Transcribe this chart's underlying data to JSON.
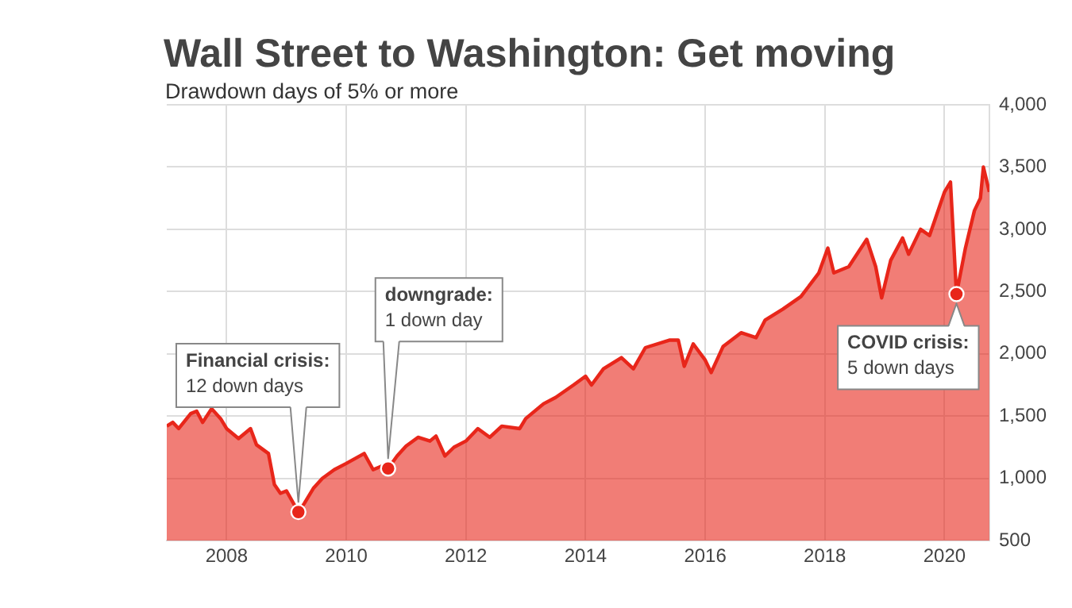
{
  "chart_data": {
    "type": "area",
    "title": "Wall Street to Washington: Get moving",
    "subtitle": "Drawdown days of 5% or more",
    "x": [
      2007.0,
      2007.1,
      2007.2,
      2007.4,
      2007.5,
      2007.6,
      2007.75,
      2007.9,
      2008.0,
      2008.2,
      2008.4,
      2008.5,
      2008.7,
      2008.8,
      2008.9,
      2009.0,
      2009.2,
      2009.3,
      2009.45,
      2009.6,
      2009.8,
      2010.0,
      2010.3,
      2010.45,
      2010.6,
      2010.7,
      2010.85,
      2011.0,
      2011.2,
      2011.4,
      2011.5,
      2011.65,
      2011.8,
      2012.0,
      2012.2,
      2012.4,
      2012.6,
      2012.9,
      2013.0,
      2013.3,
      2013.5,
      2013.8,
      2014.0,
      2014.1,
      2014.3,
      2014.6,
      2014.8,
      2015.0,
      2015.4,
      2015.55,
      2015.65,
      2015.8,
      2016.0,
      2016.1,
      2016.3,
      2016.6,
      2016.85,
      2017.0,
      2017.3,
      2017.6,
      2017.9,
      2018.05,
      2018.15,
      2018.4,
      2018.7,
      2018.85,
      2018.95,
      2019.1,
      2019.3,
      2019.4,
      2019.6,
      2019.75,
      2020.0,
      2020.1,
      2020.2,
      2020.35,
      2020.5,
      2020.6,
      2020.65,
      2020.75
    ],
    "series": [
      {
        "color": "#e8261a",
        "values": [
          1420,
          1450,
          1400,
          1520,
          1540,
          1450,
          1560,
          1480,
          1400,
          1320,
          1400,
          1270,
          1200,
          950,
          880,
          900,
          730,
          800,
          920,
          1000,
          1070,
          1120,
          1200,
          1070,
          1100,
          1080,
          1180,
          1260,
          1330,
          1300,
          1340,
          1180,
          1250,
          1300,
          1400,
          1330,
          1420,
          1400,
          1480,
          1600,
          1650,
          1750,
          1820,
          1750,
          1880,
          1970,
          1880,
          2050,
          2110,
          2110,
          1900,
          2080,
          1950,
          1850,
          2060,
          2170,
          2130,
          2270,
          2360,
          2460,
          2650,
          2850,
          2650,
          2700,
          2920,
          2700,
          2450,
          2750,
          2930,
          2800,
          3000,
          2950,
          3300,
          3380,
          2480,
          2850,
          3150,
          3250,
          3500,
          3300
        ]
      }
    ],
    "xlim": [
      2007.0,
      2020.75
    ],
    "xticks": [
      2008,
      2010,
      2012,
      2014,
      2016,
      2018,
      2020
    ],
    "ylim": [
      500,
      4000
    ],
    "yticks": [
      {
        "value": 500,
        "label": "500"
      },
      {
        "value": 1000,
        "label": "1,000"
      },
      {
        "value": 1500,
        "label": "1,500"
      },
      {
        "value": 2000,
        "label": "2,000"
      },
      {
        "value": 2500,
        "label": "2,500"
      },
      {
        "value": 3000,
        "label": "3,000"
      },
      {
        "value": 3500,
        "label": "3,500"
      },
      {
        "value": 4000,
        "label": "4,000"
      }
    ],
    "grid": true,
    "legend": false,
    "annotations": [
      {
        "text": "Financial crisis:\n12 down days",
        "x": 2009.2,
        "y": 730
      },
      {
        "text": "downgrade:\n1 down day",
        "x": 2010.7,
        "y": 1080
      },
      {
        "text": "COVID crisis:\n5 down days",
        "x": 2020.2,
        "y": 2480
      }
    ]
  }
}
